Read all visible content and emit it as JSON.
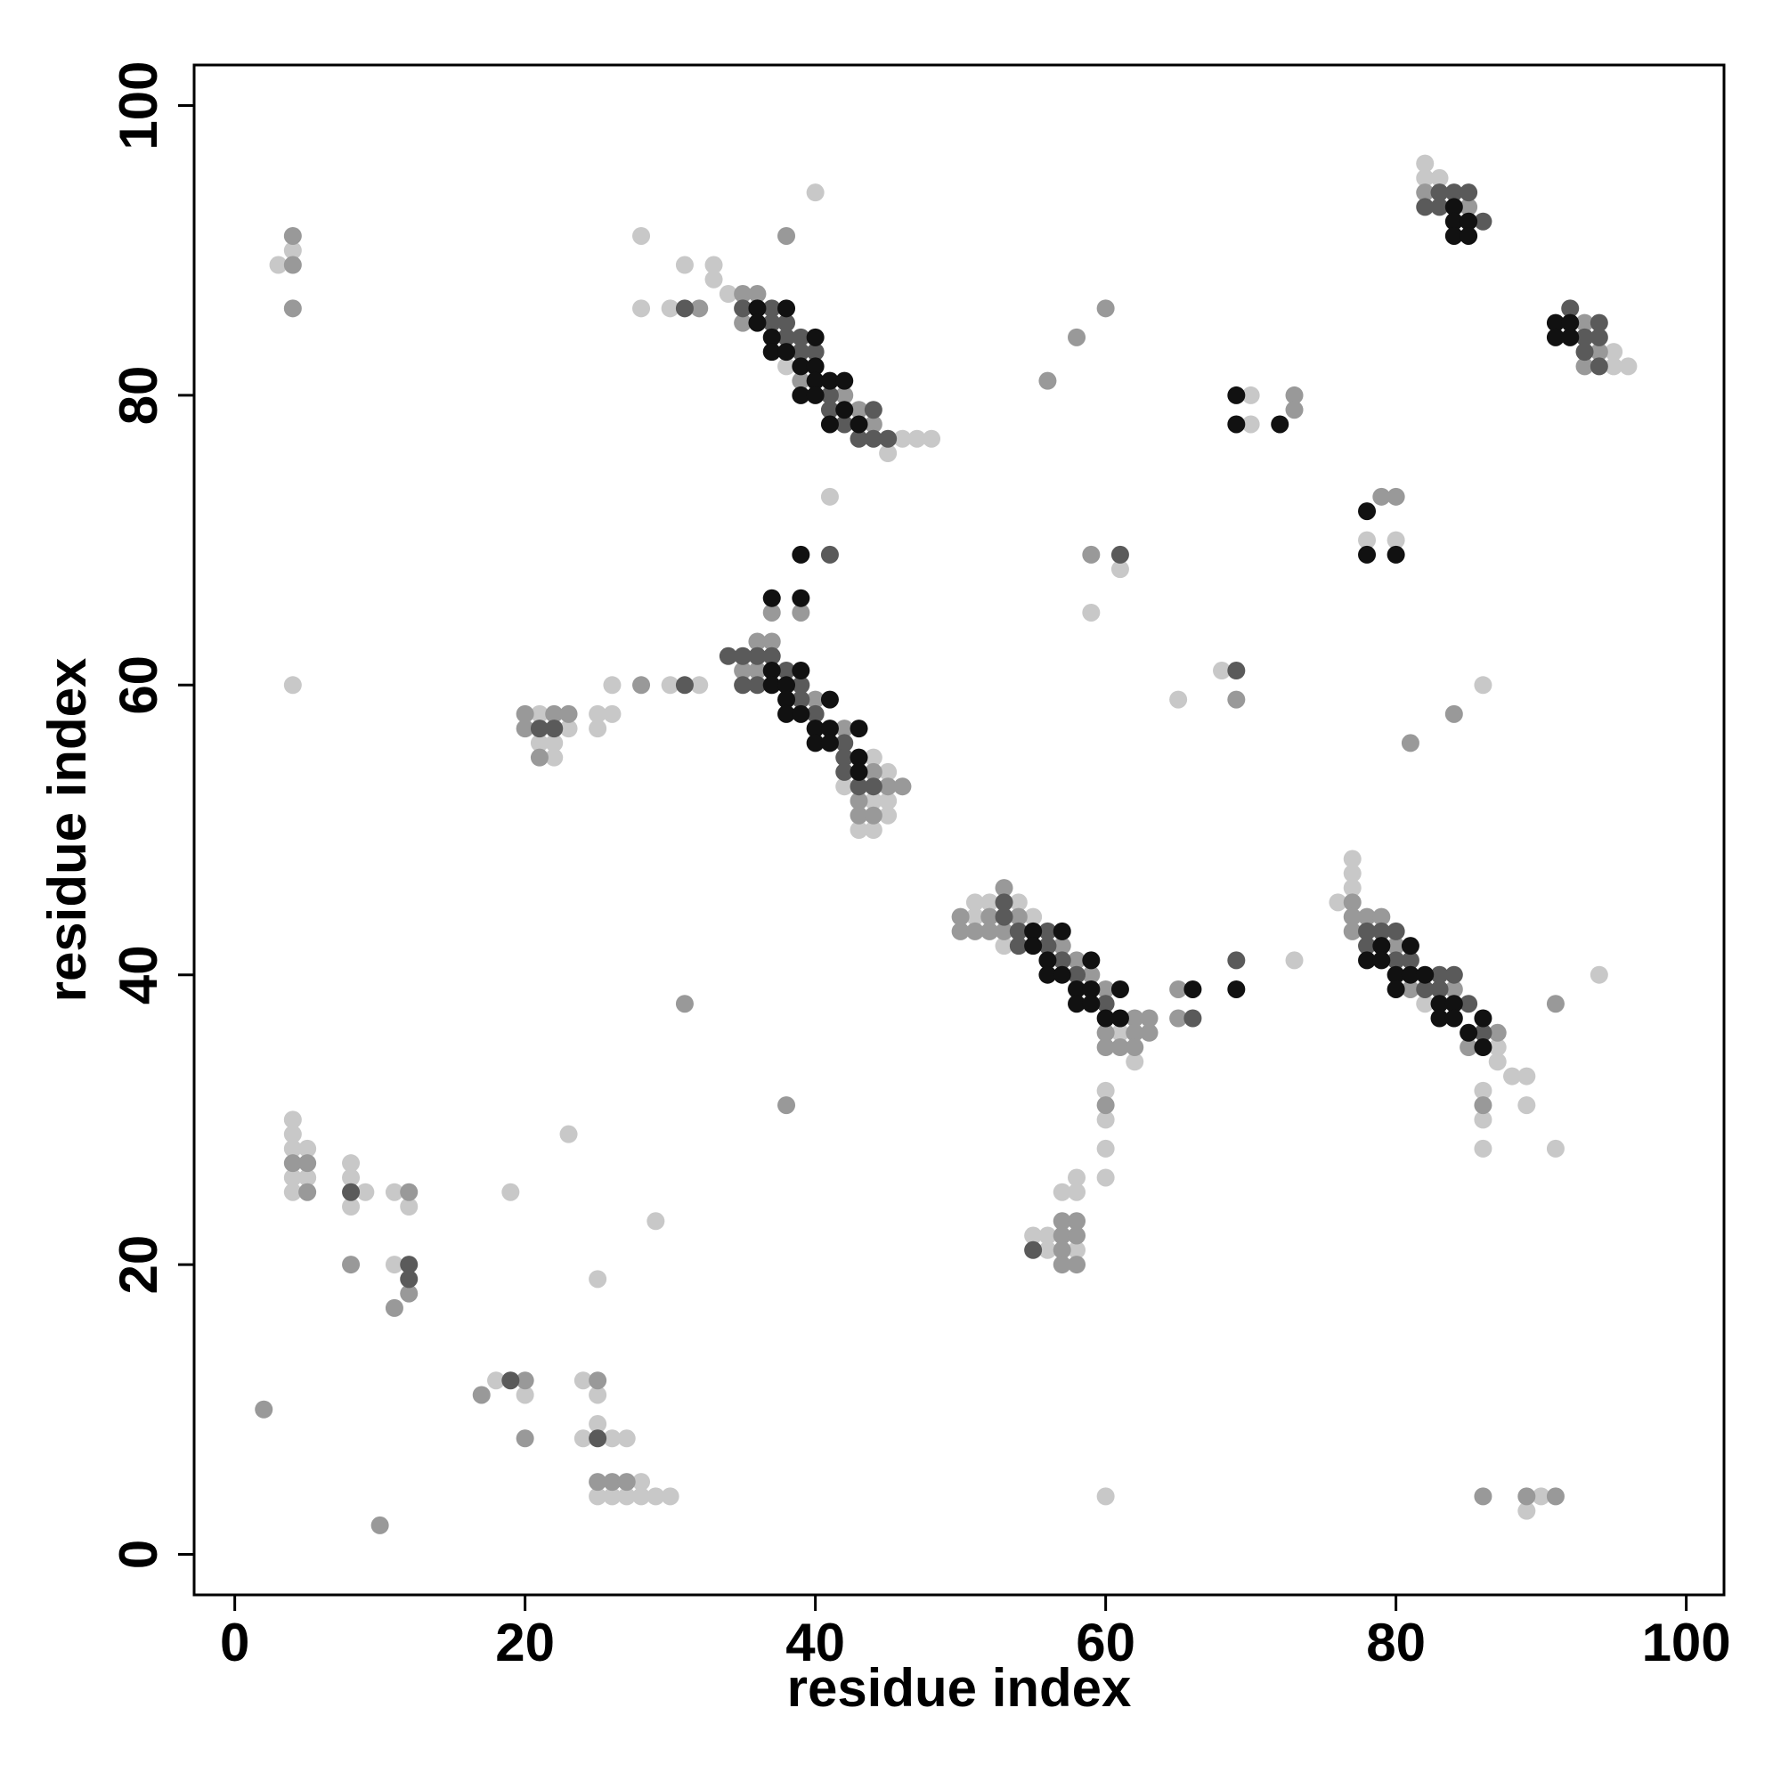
{
  "chart_data": {
    "type": "scatter",
    "xlabel": "residue index",
    "ylabel": "residue index",
    "xlim": [
      -2.8,
      102.6
    ],
    "ylim": [
      -2.8,
      102.8
    ],
    "xticks": [
      0,
      20,
      40,
      60,
      80,
      100
    ],
    "yticks": [
      0,
      20,
      40,
      60,
      80,
      100
    ],
    "series": [
      {
        "color": "#c8c8c8",
        "x": [
          3,
          4,
          4,
          28,
          28,
          30,
          31,
          33,
          33,
          34,
          40,
          38,
          46,
          47,
          48,
          45,
          41,
          44,
          45,
          42,
          44,
          45,
          45,
          43,
          44,
          21,
          23,
          21,
          22,
          22,
          25,
          26,
          25,
          26,
          30,
          32,
          51,
          55,
          51,
          52,
          54,
          53,
          61,
          62,
          73,
          60,
          60,
          60,
          60,
          58,
          57,
          58,
          55,
          56,
          56,
          58,
          77,
          77,
          77,
          76,
          82,
          87,
          87,
          88,
          89,
          86,
          89,
          86,
          86,
          91,
          94,
          82,
          82,
          83,
          95,
          95,
          96,
          70,
          70,
          78,
          80,
          61,
          59,
          68,
          65,
          86,
          4,
          4,
          4,
          5,
          4,
          5,
          4,
          8,
          8,
          9,
          8,
          11,
          12,
          11,
          19,
          23,
          29,
          25,
          18,
          20,
          24,
          25,
          25,
          24,
          26,
          27,
          28,
          25,
          26,
          27,
          28,
          29,
          30,
          60,
          90,
          89
        ],
        "values": [
          89,
          90,
          60,
          91,
          86,
          86,
          89,
          89,
          88,
          87,
          94,
          82,
          77,
          77,
          77,
          76,
          73,
          55,
          54,
          53,
          52,
          52,
          51,
          50,
          50,
          58,
          57,
          56,
          56,
          55,
          58,
          58,
          57,
          60,
          60,
          60,
          44,
          44,
          45,
          45,
          45,
          42,
          36,
          34,
          41,
          32,
          30,
          28,
          26,
          26,
          25,
          25,
          22,
          22,
          21,
          21,
          48,
          47,
          46,
          45,
          38,
          35,
          34,
          33,
          33,
          32,
          31,
          30,
          28,
          28,
          40,
          96,
          95,
          95,
          83,
          82,
          82,
          80,
          78,
          70,
          70,
          68,
          65,
          61,
          59,
          60,
          30,
          29,
          28,
          28,
          26,
          26,
          25,
          27,
          26,
          25,
          24,
          25,
          24,
          20,
          25,
          29,
          23,
          19,
          12,
          11,
          12,
          11,
          9,
          8,
          8,
          8,
          5,
          4,
          4,
          4,
          4,
          4,
          4,
          4,
          4,
          3
        ]
      },
      {
        "color": "#999999",
        "x": [
          4,
          4,
          4,
          32,
          38,
          35,
          36,
          35,
          39,
          42,
          43,
          44,
          39,
          37,
          36,
          37,
          35,
          36,
          40,
          42,
          44,
          45,
          46,
          43,
          43,
          44,
          20,
          22,
          23,
          20,
          21,
          28,
          53,
          50,
          52,
          54,
          50,
          51,
          52,
          53,
          57,
          58,
          59,
          60,
          62,
          63,
          60,
          62,
          63,
          60,
          61,
          62,
          65,
          65,
          60,
          57,
          58,
          57,
          58,
          57,
          57,
          58,
          77,
          77,
          78,
          79,
          77,
          80,
          81,
          84,
          87,
          85,
          86,
          91,
          82,
          85,
          93,
          94,
          93,
          79,
          80,
          73,
          73,
          59,
          69,
          56,
          58,
          60,
          84,
          81,
          4,
          5,
          5,
          12,
          8,
          12,
          11,
          31,
          38,
          2,
          10,
          17,
          20,
          20,
          25,
          25,
          26,
          27,
          86,
          89,
          91
        ],
        "values": [
          89,
          91,
          86,
          86,
          91,
          87,
          87,
          85,
          81,
          80,
          79,
          78,
          65,
          65,
          63,
          63,
          61,
          61,
          59,
          57,
          54,
          53,
          53,
          52,
          51,
          51,
          58,
          58,
          58,
          57,
          55,
          60,
          46,
          44,
          44,
          44,
          43,
          43,
          43,
          43,
          42,
          41,
          40,
          39,
          37,
          37,
          36,
          36,
          36,
          35,
          35,
          35,
          39,
          37,
          31,
          23,
          23,
          22,
          22,
          21,
          20,
          20,
          45,
          44,
          44,
          44,
          43,
          42,
          39,
          39,
          36,
          35,
          31,
          38,
          94,
          93,
          85,
          83,
          82,
          73,
          73,
          80,
          79,
          69,
          59,
          81,
          84,
          86,
          58,
          56,
          27,
          27,
          25,
          25,
          20,
          18,
          17,
          38,
          31,
          10,
          2,
          11,
          12,
          8,
          12,
          5,
          5,
          5,
          4,
          4,
          4
        ]
      },
      {
        "color": "#5a5a5a",
        "x": [
          31,
          35,
          37,
          37,
          38,
          38,
          39,
          39,
          40,
          41,
          41,
          44,
          42,
          43,
          44,
          45,
          41,
          34,
          35,
          36,
          37,
          38,
          35,
          36,
          39,
          39,
          40,
          42,
          42,
          42,
          43,
          44,
          21,
          22,
          31,
          53,
          53,
          54,
          56,
          54,
          56,
          57,
          58,
          60,
          66,
          69,
          55,
          78,
          79,
          80,
          78,
          80,
          81,
          83,
          84,
          82,
          83,
          85,
          86,
          83,
          84,
          85,
          82,
          83,
          86,
          94,
          92,
          93,
          94,
          93,
          94,
          61,
          69,
          8,
          12,
          12,
          19,
          25
        ],
        "values": [
          86,
          86,
          86,
          85,
          85,
          84,
          84,
          83,
          83,
          80,
          79,
          79,
          78,
          77,
          77,
          77,
          69,
          62,
          62,
          62,
          62,
          61,
          60,
          60,
          60,
          59,
          58,
          56,
          55,
          54,
          53,
          53,
          57,
          57,
          60,
          45,
          44,
          43,
          43,
          42,
          42,
          41,
          40,
          38,
          37,
          41,
          21,
          43,
          43,
          43,
          42,
          41,
          41,
          40,
          40,
          39,
          39,
          38,
          36,
          94,
          94,
          94,
          93,
          93,
          92,
          85,
          86,
          84,
          84,
          83,
          82,
          69,
          61,
          25,
          20,
          19,
          12,
          8
        ]
      },
      {
        "color": "#111111",
        "x": [
          36,
          38,
          36,
          37,
          40,
          37,
          38,
          39,
          40,
          40,
          41,
          42,
          39,
          40,
          42,
          41,
          43,
          39,
          37,
          39,
          37,
          39,
          37,
          38,
          38,
          41,
          38,
          39,
          40,
          41,
          43,
          40,
          41,
          43,
          43,
          55,
          57,
          55,
          56,
          59,
          56,
          57,
          58,
          59,
          61,
          58,
          59,
          60,
          61,
          66,
          69,
          79,
          81,
          78,
          79,
          80,
          81,
          82,
          80,
          83,
          84,
          83,
          84,
          86,
          85,
          86,
          84,
          84,
          85,
          84,
          85,
          91,
          92,
          91,
          92,
          69,
          69,
          72,
          78,
          78,
          80
        ],
        "values": [
          86,
          86,
          85,
          84,
          84,
          83,
          83,
          82,
          82,
          81,
          81,
          81,
          80,
          80,
          79,
          78,
          78,
          69,
          66,
          66,
          61,
          61,
          60,
          60,
          59,
          59,
          58,
          58,
          57,
          57,
          57,
          56,
          56,
          55,
          54,
          43,
          43,
          42,
          41,
          41,
          40,
          40,
          39,
          39,
          39,
          38,
          38,
          37,
          37,
          39,
          39,
          42,
          42,
          41,
          41,
          40,
          40,
          40,
          39,
          38,
          38,
          37,
          37,
          37,
          36,
          35,
          93,
          92,
          92,
          91,
          91,
          85,
          85,
          84,
          84,
          80,
          78,
          78,
          72,
          69,
          69
        ]
      }
    ]
  }
}
